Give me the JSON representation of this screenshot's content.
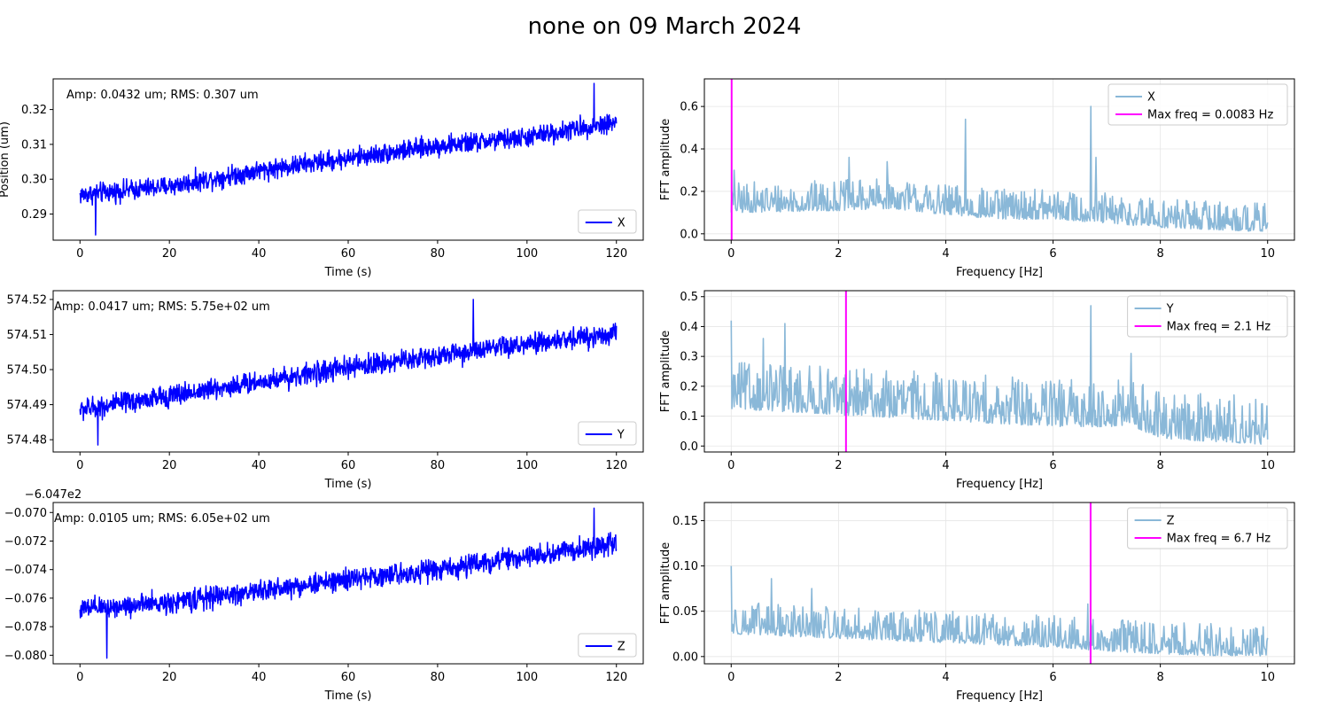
{
  "figure": {
    "title": "none on 09 March 2024"
  },
  "chart_data": [
    {
      "type": "line",
      "panel": "time-x",
      "xlabel": "Time (s)",
      "ylabel": "Position (um)",
      "annotation": "Amp: 0.0432 um; RMS: 0.307 um",
      "xlim": [
        -6,
        126
      ],
      "ylim": [
        0.2825,
        0.3288
      ],
      "xticks": [
        0,
        20,
        40,
        60,
        80,
        100,
        120
      ],
      "yticks": [
        0.29,
        0.3,
        0.31,
        0.32
      ],
      "ytick_labels": [
        "0.29",
        "0.30",
        "0.31",
        "0.32"
      ],
      "offset_label": "",
      "grid": false,
      "legend_position": "lower right",
      "series": [
        {
          "name": "X",
          "color": "#0000ff",
          "x_range": [
            0,
            120
          ],
          "n_points": 1440,
          "trend": [
            [
              0,
              0.2955
            ],
            [
              20,
              0.298
            ],
            [
              40,
              0.3025
            ],
            [
              60,
              0.306
            ],
            [
              80,
              0.3095
            ],
            [
              100,
              0.312
            ],
            [
              120,
              0.3165
            ]
          ],
          "noise_amplitude": 0.0042,
          "min_point": [
            3.5,
            0.284
          ],
          "max_point": [
            115,
            0.3275
          ]
        }
      ]
    },
    {
      "type": "line",
      "panel": "fft-x",
      "xlabel": "Frequency [Hz]",
      "ylabel": "FFT amplitude",
      "xlim": [
        -0.5,
        10.5
      ],
      "ylim": [
        -0.03,
        0.73
      ],
      "xticks": [
        0,
        2,
        4,
        6,
        8,
        10
      ],
      "yticks": [
        0.0,
        0.2,
        0.4,
        0.6
      ],
      "ytick_labels": [
        "0.0",
        "0.2",
        "0.4",
        "0.6"
      ],
      "grid": true,
      "legend_position": "upper right",
      "series": [
        {
          "name": "X",
          "color": "#8ab8d8",
          "x_range": [
            0,
            10
          ],
          "n_points": 720,
          "trend": [
            [
              0,
              0.14
            ],
            [
              2,
              0.15
            ],
            [
              3,
              0.16
            ],
            [
              4,
              0.13
            ],
            [
              5,
              0.11
            ],
            [
              6,
              0.11
            ],
            [
              7,
              0.09
            ],
            [
              8,
              0.07
            ],
            [
              10,
              0.05
            ]
          ],
          "noise_amplitude": 0.09,
          "peaks": [
            [
              0.05,
              0.3
            ],
            [
              4.37,
              0.54
            ],
            [
              6.7,
              0.6
            ],
            [
              6.8,
              0.36
            ],
            [
              2.9,
              0.34
            ],
            [
              2.2,
              0.36
            ]
          ]
        },
        {
          "name": "Max freq = 0.0083 Hz",
          "color": "#ff00ff",
          "vline_x": 0.0083
        }
      ]
    },
    {
      "type": "line",
      "panel": "time-y",
      "xlabel": "Time (s)",
      "ylabel": "",
      "annotation": "Amp: 0.0417 um;  RMS: 5.75e+02 um",
      "xlim": [
        -6,
        126
      ],
      "ylim": [
        574.4765,
        574.5225
      ],
      "xticks": [
        0,
        20,
        40,
        60,
        80,
        100,
        120
      ],
      "yticks": [
        574.48,
        574.49,
        574.5,
        574.51,
        574.52
      ],
      "ytick_labels": [
        "574.48",
        "574.49",
        "574.50",
        "574.51",
        "574.52"
      ],
      "offset_label": "",
      "grid": false,
      "legend_position": "lower right",
      "series": [
        {
          "name": "Y",
          "color": "#0000ff",
          "x_range": [
            0,
            120
          ],
          "n_points": 1440,
          "trend": [
            [
              0,
              574.4885
            ],
            [
              20,
              574.4925
            ],
            [
              40,
              574.4965
            ],
            [
              60,
              574.5005
            ],
            [
              80,
              574.504
            ],
            [
              100,
              574.507
            ],
            [
              120,
              574.5105
            ]
          ],
          "noise_amplitude": 0.0045,
          "min_point": [
            4,
            574.4785
          ],
          "max_point": [
            88,
            574.52
          ]
        }
      ]
    },
    {
      "type": "line",
      "panel": "fft-y",
      "xlabel": "Frequency [Hz]",
      "ylabel": "FFT amplitude",
      "xlim": [
        -0.5,
        10.5
      ],
      "ylim": [
        -0.02,
        0.52
      ],
      "xticks": [
        0,
        2,
        4,
        6,
        8,
        10
      ],
      "yticks": [
        0.0,
        0.1,
        0.2,
        0.3,
        0.4,
        0.5
      ],
      "ytick_labels": [
        "0.0",
        "0.1",
        "0.2",
        "0.3",
        "0.4",
        "0.5"
      ],
      "grid": true,
      "legend_position": "upper right",
      "series": [
        {
          "name": "Y",
          "color": "#8ab8d8",
          "x_range": [
            0,
            10
          ],
          "n_points": 720,
          "trend": [
            [
              0,
              0.17
            ],
            [
              2,
              0.15
            ],
            [
              4,
              0.13
            ],
            [
              6,
              0.11
            ],
            [
              7.5,
              0.11
            ],
            [
              8,
              0.07
            ],
            [
              10,
              0.05
            ]
          ],
          "noise_amplitude": 0.1,
          "peaks": [
            [
              0.0,
              0.42
            ],
            [
              1.0,
              0.41
            ],
            [
              6.7,
              0.47
            ],
            [
              7.45,
              0.31
            ],
            [
              0.6,
              0.36
            ]
          ]
        },
        {
          "name": "Max freq = 2.1 Hz",
          "color": "#ff00ff",
          "vline_x": 2.14
        }
      ]
    },
    {
      "type": "line",
      "panel": "time-z",
      "xlabel": "Time (s)",
      "ylabel": "",
      "annotation": "Amp: 0.0105 um; RMS: 6.05e+02 um",
      "xlim": [
        -6,
        126
      ],
      "ylim": [
        -0.0806,
        -0.0693
      ],
      "xticks": [
        0,
        20,
        40,
        60,
        80,
        100,
        120
      ],
      "yticks": [
        -0.08,
        -0.078,
        -0.076,
        -0.074,
        -0.072,
        -0.07
      ],
      "ytick_labels": [
        "−0.080",
        "−0.078",
        "−0.076",
        "−0.074",
        "−0.072",
        "−0.070"
      ],
      "offset_label": "−6.047e2",
      "grid": false,
      "legend_position": "lower right",
      "series": [
        {
          "name": "Z",
          "color": "#0000ff",
          "x_range": [
            0,
            120
          ],
          "n_points": 1440,
          "trend": [
            [
              0,
              -0.0768
            ],
            [
              20,
              -0.0763
            ],
            [
              40,
              -0.0755
            ],
            [
              60,
              -0.0747
            ],
            [
              80,
              -0.074
            ],
            [
              100,
              -0.0731
            ],
            [
              120,
              -0.0722
            ]
          ],
          "noise_amplitude": 0.0011,
          "min_point": [
            6,
            -0.0802
          ],
          "max_point": [
            115,
            -0.0697
          ]
        }
      ]
    },
    {
      "type": "line",
      "panel": "fft-z",
      "xlabel": "Frequency [Hz]",
      "ylabel": "FFT amplitude",
      "xlim": [
        -0.5,
        10.5
      ],
      "ylim": [
        -0.008,
        0.17
      ],
      "xticks": [
        0,
        2,
        4,
        6,
        8,
        10
      ],
      "yticks": [
        0.0,
        0.05,
        0.1,
        0.15
      ],
      "ytick_labels": [
        "0.00",
        "0.05",
        "0.10",
        "0.15"
      ],
      "grid": true,
      "legend_position": "upper right",
      "series": [
        {
          "name": "Z",
          "color": "#8ab8d8",
          "x_range": [
            0,
            10
          ],
          "n_points": 720,
          "trend": [
            [
              0,
              0.035
            ],
            [
              2,
              0.03
            ],
            [
              4,
              0.025
            ],
            [
              6,
              0.02
            ],
            [
              7,
              0.016
            ],
            [
              8,
              0.013
            ],
            [
              10,
              0.009
            ]
          ],
          "noise_amplitude": 0.022,
          "peaks": [
            [
              0.0,
              0.1
            ],
            [
              0.75,
              0.086
            ],
            [
              1.5,
              0.075
            ],
            [
              6.65,
              0.058
            ]
          ]
        },
        {
          "name": "Max freq = 6.7 Hz",
          "color": "#ff00ff",
          "vline_x": 6.7
        }
      ]
    }
  ]
}
